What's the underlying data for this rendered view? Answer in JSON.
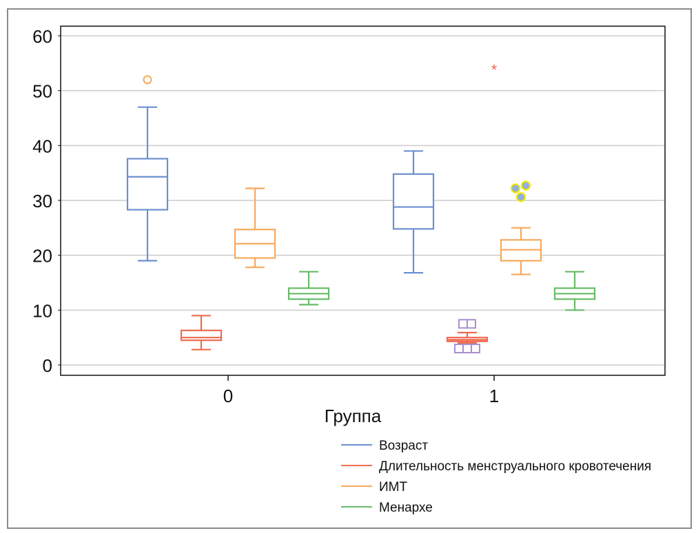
{
  "chart_data": {
    "type": "boxplot",
    "title": "",
    "xlabel": "Группа",
    "ylabel": "",
    "ylim": [
      0,
      60
    ],
    "yticks": [
      0,
      10,
      20,
      30,
      40,
      50,
      60
    ],
    "grid": true,
    "categories": [
      "0",
      "1"
    ],
    "legend_position": "bottom-right",
    "series": [
      {
        "name": "Возраст",
        "color": "#6b8fd0",
        "boxes": [
          {
            "group": "0",
            "whisker_low": 19,
            "q1": 28.3,
            "median": 34.3,
            "q3": 37.6,
            "whisker_high": 47,
            "outliers": [],
            "extremes": []
          },
          {
            "group": "1",
            "whisker_low": 16.8,
            "q1": 24.8,
            "median": 28.8,
            "q3": 34.8,
            "whisker_high": 39,
            "outliers": [],
            "extremes": []
          }
        ]
      },
      {
        "name": "Длительность менструального кровотечения",
        "color": "#ee6a4f",
        "boxes": [
          {
            "group": "0",
            "whisker_low": 2.8,
            "q1": 4.5,
            "median": 5.0,
            "q3": 6.3,
            "whisker_high": 9.0,
            "outliers": [],
            "extremes": []
          },
          {
            "group": "1",
            "whisker_low": 4.0,
            "q1": 4.3,
            "median": 4.6,
            "q3": 5.0,
            "whisker_high": 5.9,
            "outliers": [
              7.5,
              7.5,
              3.0,
              3.0,
              3.0
            ],
            "extremes": [
              54
            ]
          }
        ]
      },
      {
        "name": "ИМТ",
        "color": "#f9a85c",
        "boxes": [
          {
            "group": "0",
            "whisker_low": 17.8,
            "q1": 19.5,
            "median": 22.1,
            "q3": 24.7,
            "whisker_high": 32.2,
            "outliers": [
              52
            ],
            "extremes": []
          },
          {
            "group": "1",
            "whisker_low": 16.5,
            "q1": 19.0,
            "median": 21.0,
            "q3": 22.8,
            "whisker_high": 25.0,
            "outliers": [
              32.2,
              32.7,
              30.6
            ],
            "extremes": []
          }
        ]
      },
      {
        "name": "Менархе",
        "color": "#66bb66",
        "boxes": [
          {
            "group": "0",
            "whisker_low": 11,
            "q1": 12,
            "median": 13,
            "q3": 14,
            "whisker_high": 17,
            "outliers": [],
            "extremes": []
          },
          {
            "group": "1",
            "whisker_low": 10,
            "q1": 12,
            "median": 13,
            "q3": 14,
            "whisker_high": 17,
            "outliers": [],
            "extremes": []
          }
        ]
      }
    ],
    "outlier_styles": {
      "square_color": "#a78fce",
      "highlight_dot_fill": "#8fb0e0",
      "highlight_dot_ring": "#f2e600"
    }
  }
}
